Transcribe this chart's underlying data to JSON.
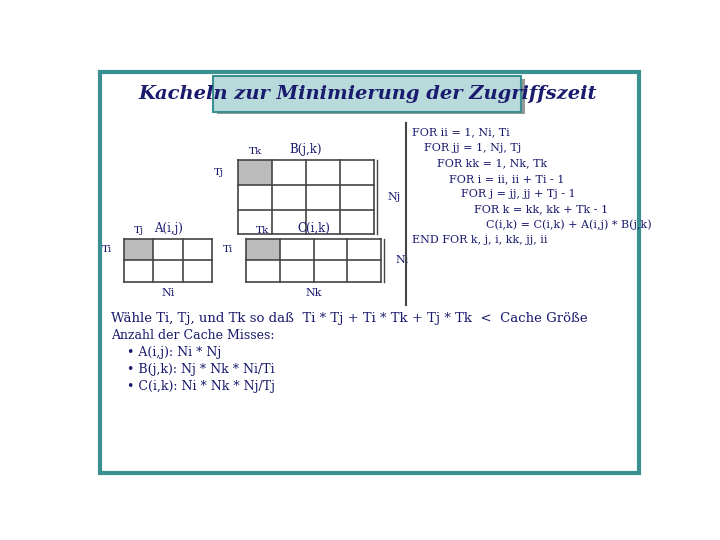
{
  "title": "Kacheln zur Minimierung der Zugriffszeit",
  "bg_color": "#ffffff",
  "border_color": "#3a9090",
  "title_box_color": "#b8dada",
  "title_box_border": "#3a9090",
  "grid_color": "#444444",
  "shaded_color": "#bbbbbb",
  "text_color": "#1a1a6e",
  "code_lines": [
    [
      "FOR ii = 1, Ni, Ti",
      0
    ],
    [
      "FOR jj = 1, Nj, Tj",
      1
    ],
    [
      "FOR kk = 1, Nk, Tk",
      2
    ],
    [
      "FOR i = ii, ii + Ti - 1",
      3
    ],
    [
      "FOR j = jj, jj + Tj - 1",
      4
    ],
    [
      "FOR k = kk, kk + Tk - 1",
      5
    ],
    [
      "C(i,k) = C(i,k) + A(i,j) * B(j,k)",
      6
    ],
    [
      "END FOR k, j, i, kk, jj, ii",
      0
    ]
  ],
  "bottom_lines": [
    "Wähle Ti, Tj, und Tk so daß  Ti * Tj + Ti * Tk + Tj * Tk  <  Cache Größe",
    "Anzahl der Cache Misses:",
    "    • A(i,j): Ni * Nj",
    "    • B(j,k): Nj * Nk * Ni/Ti",
    "    • C(i,k): Ni * Nk * Nj/Tj"
  ]
}
